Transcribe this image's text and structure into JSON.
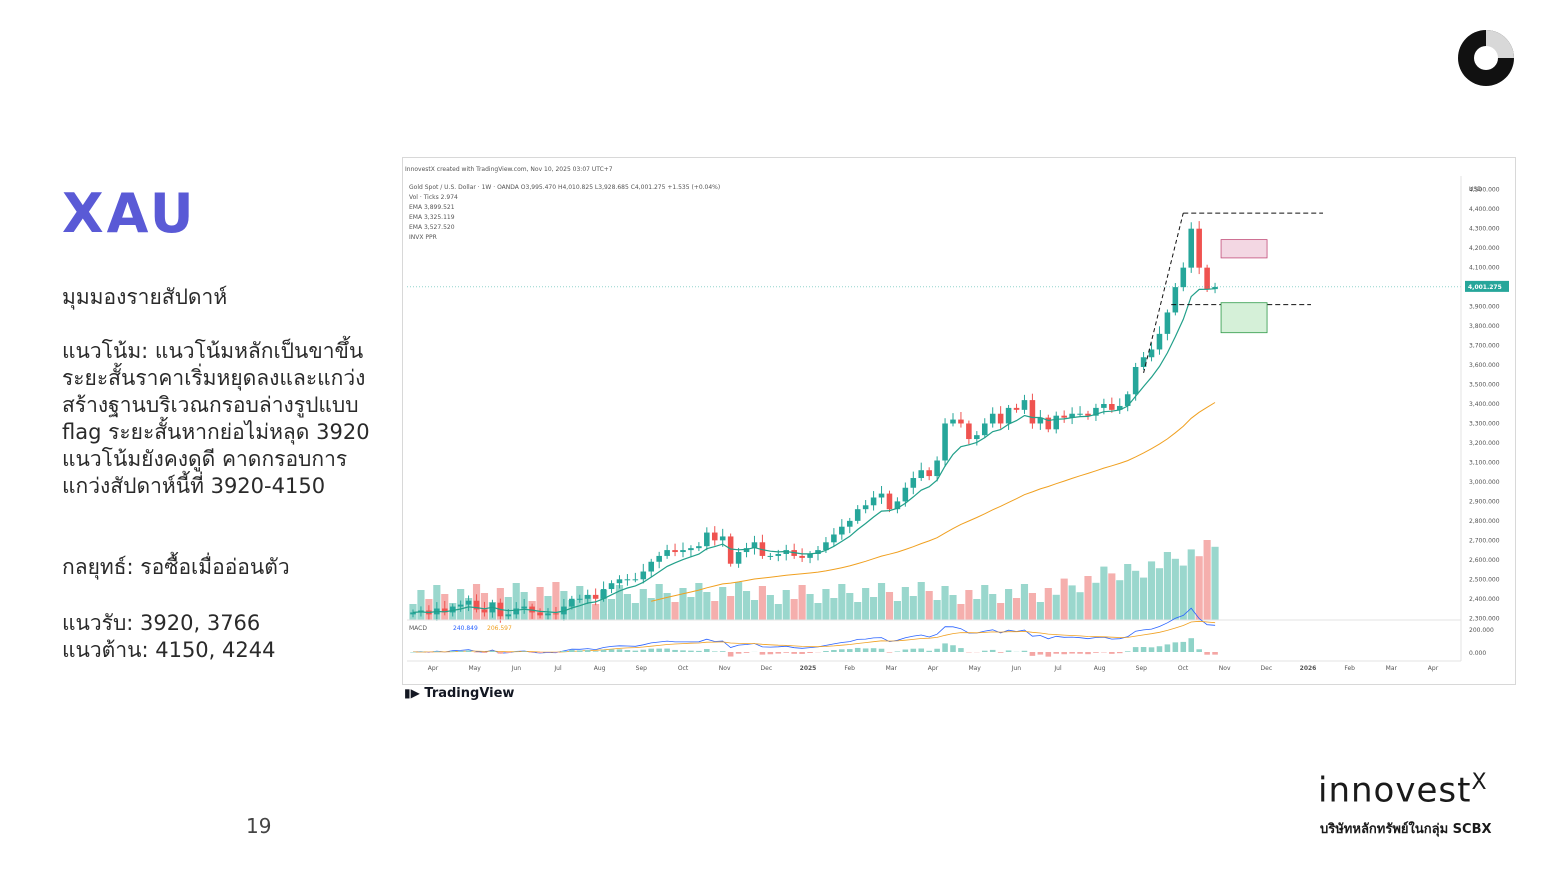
{
  "slide": {
    "title": "XAU",
    "heading": "มุมมองรายสัปดาห์",
    "trend": "แนวโน้ม: แนวโน้มหลักเป็นขาขึ้น\nระยะสั้นราคาเริ่มหยุดลงและแกว่ง\nสร้างฐานบริเวณกรอบล่างรูปแบบ\nflag ระยะสั้นหากย่อไม่หลุด 3920\nแนวโน้มยังคงดูดี คาดกรอบการ\nแกว่งสัปดาห์นี้ที่ 3920-4150",
    "strategy": "กลยุทธ์: รอซื้อเมื่ออ่อนตัว",
    "levels": "แนวรับ: 3920, 3766\nแนวต้าน: 4150, 4244",
    "page_number": "19"
  },
  "brand": {
    "wordmark": "innovest",
    "wordmark_x": "X",
    "subtitle": "บริษัทหลักทรัพย์ในกลุ่ม SCBX",
    "tradingview": "TradingView"
  },
  "colors": {
    "accent": "#5a5ad6",
    "up": "#26a69a",
    "down": "#ef5350",
    "ema_fast": "#22a08a",
    "ema_slow": "#f0a020"
  },
  "chart_data": {
    "type": "candlestick",
    "header": "InnovestX created with TradingView.com, Nov 10, 2025 03:07 UTC+7",
    "symbol_line": "Gold Spot / U.S. Dollar · 1W · OANDA  O3,995.470 H4,010.825 L3,928.685 C4,001.275 +1.535 (+0.04%)",
    "indicators": [
      "Vol · Ticks  2.974",
      "EMA  3,899.521",
      "EMA  3,325.119",
      "EMA  3,527.520",
      "INVX PPR"
    ],
    "currency": "USD",
    "last_price": "4,001.275",
    "ylim": [
      2250,
      4550
    ],
    "y_ticks": [
      "4,500.000",
      "4,400.000",
      "4,300.000",
      "4,200.000",
      "4,100.000",
      "3,900.000",
      "3,800.000",
      "3,700.000",
      "3,600.000",
      "3,500.000",
      "3,400.000",
      "3,300.000",
      "3,200.000",
      "3,100.000",
      "3,000.000",
      "2,900.000",
      "2,800.000",
      "2,700.000",
      "2,600.000",
      "2,500.000",
      "2,400.000",
      "2,300.000"
    ],
    "x_ticks": [
      "Apr",
      "May",
      "Jun",
      "Jul",
      "Aug",
      "Sep",
      "Oct",
      "Nov",
      "Dec",
      "2025",
      "Feb",
      "Mar",
      "Apr",
      "May",
      "Jun",
      "Jul",
      "Aug",
      "Sep",
      "Oct",
      "Nov",
      "Dec",
      "2026",
      "Feb",
      "Mar",
      "Apr"
    ],
    "close": [
      2330,
      2340,
      2320,
      2350,
      2330,
      2360,
      2370,
      2390,
      2345,
      2330,
      2380,
      2310,
      2320,
      2350,
      2360,
      2330,
      2315,
      2325,
      2320,
      2360,
      2400,
      2400,
      2420,
      2400,
      2450,
      2480,
      2500,
      2500,
      2500,
      2540,
      2590,
      2620,
      2650,
      2640,
      2650,
      2660,
      2670,
      2740,
      2700,
      2720,
      2580,
      2640,
      2660,
      2690,
      2620,
      2620,
      2630,
      2650,
      2620,
      2610,
      2630,
      2650,
      2690,
      2730,
      2770,
      2800,
      2860,
      2880,
      2920,
      2940,
      2860,
      2900,
      2970,
      3020,
      3060,
      3030,
      3110,
      3300,
      3320,
      3300,
      3220,
      3240,
      3300,
      3350,
      3300,
      3380,
      3370,
      3420,
      3300,
      3330,
      3270,
      3340,
      3330,
      3350,
      3350,
      3340,
      3380,
      3400,
      3370,
      3390,
      3450,
      3590,
      3640,
      3680,
      3760,
      3870,
      4000,
      4100,
      4300,
      4100,
      3990,
      4001
    ],
    "macd": {
      "label": "MACD",
      "values_shown": [
        "240.849",
        "206.597"
      ],
      "y_ticks": [
        "200.000",
        "0.000"
      ]
    },
    "annotations": {
      "resistance_zone": [
        4150,
        4244
      ],
      "support_zone": [
        3766,
        3920
      ]
    }
  }
}
